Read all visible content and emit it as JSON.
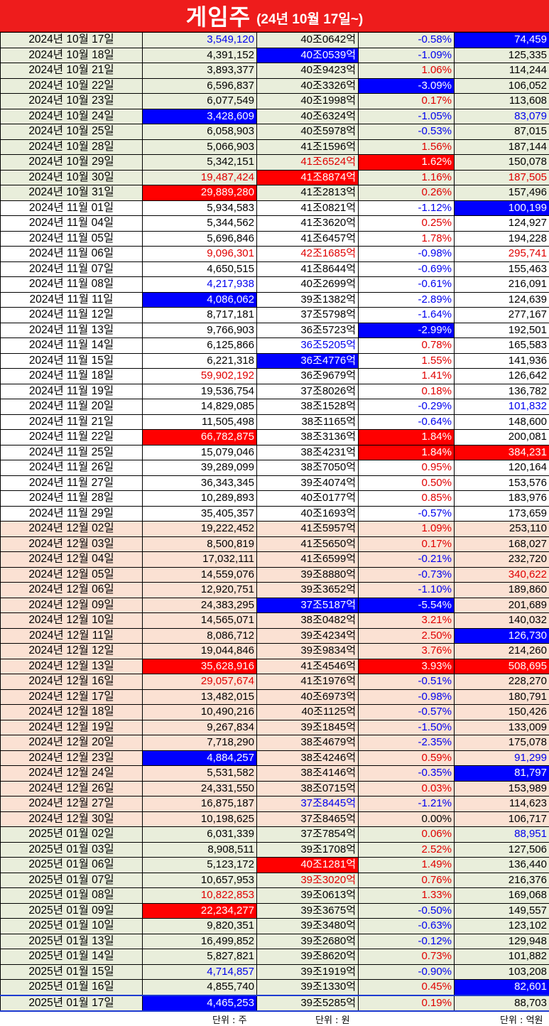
{
  "header": {
    "title": "게임주",
    "subtitle": "(24년 10월 17일~)"
  },
  "footer": {
    "unit_volume": "단위 : 주",
    "unit_cap": "단위 : 원",
    "unit_value": "단위 : 억원"
  },
  "rows": [
    {
      "bg": "g",
      "date": "2024년 10월 17일",
      "volume": "3,549,120",
      "volume_style": "cB",
      "cap": "40조0642억",
      "cap_style": "",
      "change": "-0.58%",
      "change_style": "cB",
      "value": "74,459",
      "value_style": "bgB"
    },
    {
      "bg": "g",
      "date": "2024년 10월 18일",
      "volume": "4,391,152",
      "volume_style": "",
      "cap": "40조0539억",
      "cap_style": "bgB",
      "change": "-1.09%",
      "change_style": "cB",
      "value": "125,335",
      "value_style": ""
    },
    {
      "bg": "g",
      "date": "2024년 10월 21일",
      "volume": "3,893,377",
      "volume_style": "",
      "cap": "40조9423억",
      "cap_style": "",
      "change": "1.06%",
      "change_style": "cR",
      "value": "114,244",
      "value_style": ""
    },
    {
      "bg": "g",
      "date": "2024년 10월 22일",
      "volume": "6,596,837",
      "volume_style": "",
      "cap": "40조3326억",
      "cap_style": "",
      "change": "-3.09%",
      "change_style": "bgB",
      "value": "106,052",
      "value_style": ""
    },
    {
      "bg": "g",
      "date": "2024년 10월 23일",
      "volume": "6,077,549",
      "volume_style": "",
      "cap": "40조1998억",
      "cap_style": "",
      "change": "0.17%",
      "change_style": "cR",
      "value": "113,608",
      "value_style": ""
    },
    {
      "bg": "g",
      "date": "2024년 10월 24일",
      "volume": "3,428,609",
      "volume_style": "bgB",
      "cap": "40조6324억",
      "cap_style": "",
      "change": "-1.05%",
      "change_style": "cB",
      "value": "83,079",
      "value_style": "cB"
    },
    {
      "bg": "g",
      "date": "2024년 10월 25일",
      "volume": "6,058,903",
      "volume_style": "",
      "cap": "40조5978억",
      "cap_style": "",
      "change": "-0.53%",
      "change_style": "cB",
      "value": "87,015",
      "value_style": ""
    },
    {
      "bg": "g",
      "date": "2024년 10월 28일",
      "volume": "5,066,903",
      "volume_style": "",
      "cap": "41조1596억",
      "cap_style": "",
      "change": "1.56%",
      "change_style": "cR",
      "value": "187,144",
      "value_style": ""
    },
    {
      "bg": "g",
      "date": "2024년 10월 29일",
      "volume": "5,342,151",
      "volume_style": "",
      "cap": "41조6524억",
      "cap_style": "cR",
      "change": "1.62%",
      "change_style": "bgR",
      "value": "150,078",
      "value_style": ""
    },
    {
      "bg": "g",
      "date": "2024년 10월 30일",
      "volume": "19,487,424",
      "volume_style": "cR",
      "cap": "41조8874억",
      "cap_style": "bgR",
      "change": "1.16%",
      "change_style": "cR",
      "value": "187,505",
      "value_style": "cR"
    },
    {
      "bg": "g",
      "date": "2024년 10월 31일",
      "volume": "29,889,280",
      "volume_style": "bgR",
      "cap": "41조2813억",
      "cap_style": "",
      "change": "0.26%",
      "change_style": "cR",
      "value": "157,496",
      "value_style": ""
    },
    {
      "bg": "w",
      "date": "2024년 11월 01일",
      "volume": "5,934,583",
      "volume_style": "",
      "cap": "41조0821억",
      "cap_style": "",
      "change": "-1.12%",
      "change_style": "cB",
      "value": "100,199",
      "value_style": "bgB"
    },
    {
      "bg": "w",
      "date": "2024년 11월 04일",
      "volume": "5,344,562",
      "volume_style": "",
      "cap": "41조3620억",
      "cap_style": "",
      "change": "0.25%",
      "change_style": "cR",
      "value": "124,927",
      "value_style": ""
    },
    {
      "bg": "w",
      "date": "2024년 11월 05일",
      "volume": "5,696,846",
      "volume_style": "",
      "cap": "41조6457억",
      "cap_style": "",
      "change": "1.78%",
      "change_style": "cR",
      "value": "194,228",
      "value_style": ""
    },
    {
      "bg": "w",
      "date": "2024년 11월 06일",
      "volume": "9,096,301",
      "volume_style": "cR",
      "cap": "42조1685억",
      "cap_style": "cR",
      "change": "-0.98%",
      "change_style": "cB",
      "value": "295,741",
      "value_style": "cR"
    },
    {
      "bg": "w",
      "date": "2024년 11월 07일",
      "volume": "4,650,515",
      "volume_style": "",
      "cap": "41조8644억",
      "cap_style": "",
      "change": "-0.69%",
      "change_style": "cB",
      "value": "155,463",
      "value_style": ""
    },
    {
      "bg": "w",
      "date": "2024년 11월 08일",
      "volume": "4,217,938",
      "volume_style": "cB",
      "cap": "40조2699억",
      "cap_style": "",
      "change": "-0.61%",
      "change_style": "cB",
      "value": "216,091",
      "value_style": ""
    },
    {
      "bg": "w",
      "date": "2024년 11월 11일",
      "volume": "4,086,062",
      "volume_style": "bgB",
      "cap": "39조1382억",
      "cap_style": "",
      "change": "-2.89%",
      "change_style": "cB",
      "value": "124,639",
      "value_style": ""
    },
    {
      "bg": "w",
      "date": "2024년 11월 12일",
      "volume": "8,717,181",
      "volume_style": "",
      "cap": "37조5798억",
      "cap_style": "",
      "change": "-1.64%",
      "change_style": "cB",
      "value": "277,167",
      "value_style": ""
    },
    {
      "bg": "w",
      "date": "2024년 11월 13일",
      "volume": "9,766,903",
      "volume_style": "",
      "cap": "36조5723억",
      "cap_style": "",
      "change": "-2.99%",
      "change_style": "bgB",
      "value": "192,501",
      "value_style": ""
    },
    {
      "bg": "w",
      "date": "2024년 11월 14일",
      "volume": "6,125,866",
      "volume_style": "",
      "cap": "36조5205억",
      "cap_style": "cB",
      "change": "0.78%",
      "change_style": "cR",
      "value": "165,583",
      "value_style": ""
    },
    {
      "bg": "w",
      "date": "2024년 11월 15일",
      "volume": "6,221,318",
      "volume_style": "",
      "cap": "36조4776억",
      "cap_style": "bgB",
      "change": "1.55%",
      "change_style": "cR",
      "value": "141,936",
      "value_style": ""
    },
    {
      "bg": "w",
      "date": "2024년 11월 18일",
      "volume": "59,902,192",
      "volume_style": "cR",
      "cap": "36조9679억",
      "cap_style": "",
      "change": "1.41%",
      "change_style": "cR",
      "value": "126,642",
      "value_style": ""
    },
    {
      "bg": "w",
      "date": "2024년 11월 19일",
      "volume": "19,536,754",
      "volume_style": "",
      "cap": "37조8026억",
      "cap_style": "",
      "change": "0.18%",
      "change_style": "cR",
      "value": "136,782",
      "value_style": ""
    },
    {
      "bg": "w",
      "date": "2024년 11월 20일",
      "volume": "14,829,085",
      "volume_style": "",
      "cap": "38조1528억",
      "cap_style": "",
      "change": "-0.29%",
      "change_style": "cB",
      "value": "101,832",
      "value_style": "cB"
    },
    {
      "bg": "w",
      "date": "2024년 11월 21일",
      "volume": "11,505,498",
      "volume_style": "",
      "cap": "38조1165억",
      "cap_style": "",
      "change": "-0.64%",
      "change_style": "cB",
      "value": "148,600",
      "value_style": ""
    },
    {
      "bg": "w",
      "date": "2024년 11월 22일",
      "volume": "66,782,875",
      "volume_style": "bgR",
      "cap": "38조3136억",
      "cap_style": "",
      "change": "1.84%",
      "change_style": "bgR",
      "value": "200,081",
      "value_style": ""
    },
    {
      "bg": "w",
      "date": "2024년 11월 25일",
      "volume": "15,079,046",
      "volume_style": "",
      "cap": "38조4231억",
      "cap_style": "",
      "change": "1.84%",
      "change_style": "bgR",
      "value": "384,231",
      "value_style": "bgR"
    },
    {
      "bg": "w",
      "date": "2024년 11월 26일",
      "volume": "39,289,099",
      "volume_style": "",
      "cap": "38조7050억",
      "cap_style": "",
      "change": "0.95%",
      "change_style": "cR",
      "value": "120,164",
      "value_style": ""
    },
    {
      "bg": "w",
      "date": "2024년 11월 27일",
      "volume": "36,343,345",
      "volume_style": "",
      "cap": "39조4074억",
      "cap_style": "",
      "change": "0.50%",
      "change_style": "cR",
      "value": "153,576",
      "value_style": ""
    },
    {
      "bg": "w",
      "date": "2024년 11월 28일",
      "volume": "10,289,893",
      "volume_style": "",
      "cap": "40조0177억",
      "cap_style": "",
      "change": "0.85%",
      "change_style": "cR",
      "value": "183,976",
      "value_style": ""
    },
    {
      "bg": "w",
      "date": "2024년 11월 29일",
      "volume": "35,405,357",
      "volume_style": "",
      "cap": "40조1693억",
      "cap_style": "",
      "change": "-0.57%",
      "change_style": "cB",
      "value": "173,659",
      "value_style": ""
    },
    {
      "bg": "p",
      "date": "2024년 12월 02일",
      "volume": "19,222,452",
      "volume_style": "",
      "cap": "41조5957억",
      "cap_style": "",
      "change": "1.09%",
      "change_style": "cR",
      "value": "253,110",
      "value_style": ""
    },
    {
      "bg": "p",
      "date": "2024년 12월 03일",
      "volume": "8,500,819",
      "volume_style": "",
      "cap": "41조5650억",
      "cap_style": "",
      "change": "0.17%",
      "change_style": "cR",
      "value": "168,027",
      "value_style": ""
    },
    {
      "bg": "p",
      "date": "2024년 12월 04일",
      "volume": "17,032,111",
      "volume_style": "",
      "cap": "41조6599억",
      "cap_style": "",
      "change": "-0.21%",
      "change_style": "cB",
      "value": "232,720",
      "value_style": ""
    },
    {
      "bg": "p",
      "date": "2024년 12월 05일",
      "volume": "14,559,076",
      "volume_style": "",
      "cap": "39조8880억",
      "cap_style": "",
      "change": "-0.73%",
      "change_style": "cB",
      "value": "340,622",
      "value_style": "cR"
    },
    {
      "bg": "p",
      "date": "2024년 12월 06일",
      "volume": "12,920,751",
      "volume_style": "",
      "cap": "39조3652억",
      "cap_style": "",
      "change": "-1.10%",
      "change_style": "cB",
      "value": "189,860",
      "value_style": ""
    },
    {
      "bg": "p",
      "date": "2024년 12월 09일",
      "volume": "24,383,295",
      "volume_style": "",
      "cap": "37조5187억",
      "cap_style": "bgB",
      "change": "-5.54%",
      "change_style": "bgB",
      "value": "201,689",
      "value_style": ""
    },
    {
      "bg": "p",
      "date": "2024년 12월 10일",
      "volume": "14,565,071",
      "volume_style": "",
      "cap": "38조0482억",
      "cap_style": "",
      "change": "3.21%",
      "change_style": "cR",
      "value": "140,032",
      "value_style": ""
    },
    {
      "bg": "p",
      "date": "2024년 12월 11일",
      "volume": "8,086,712",
      "volume_style": "",
      "cap": "39조4234억",
      "cap_style": "",
      "change": "2.50%",
      "change_style": "cR",
      "value": "126,730",
      "value_style": "bgB"
    },
    {
      "bg": "p",
      "date": "2024년 12월 12일",
      "volume": "19,044,846",
      "volume_style": "",
      "cap": "39조9834억",
      "cap_style": "",
      "change": "3.76%",
      "change_style": "cR",
      "value": "214,260",
      "value_style": ""
    },
    {
      "bg": "p",
      "date": "2024년 12월 13일",
      "volume": "35,628,916",
      "volume_style": "bgR",
      "cap": "41조4546억",
      "cap_style": "",
      "change": "3.93%",
      "change_style": "bgR",
      "value": "508,695",
      "value_style": "bgR"
    },
    {
      "bg": "p",
      "date": "2024년 12월 16일",
      "volume": "29,057,674",
      "volume_style": "cR",
      "cap": "41조1976억",
      "cap_style": "",
      "change": "-0.51%",
      "change_style": "cB",
      "value": "228,270",
      "value_style": ""
    },
    {
      "bg": "p",
      "date": "2024년 12월 17일",
      "volume": "13,482,015",
      "volume_style": "",
      "cap": "40조6973억",
      "cap_style": "",
      "change": "-0.98%",
      "change_style": "cB",
      "value": "180,791",
      "value_style": ""
    },
    {
      "bg": "p",
      "date": "2024년 12월 18일",
      "volume": "10,490,216",
      "volume_style": "",
      "cap": "40조1125억",
      "cap_style": "",
      "change": "-0.57%",
      "change_style": "cB",
      "value": "150,426",
      "value_style": ""
    },
    {
      "bg": "p",
      "date": "2024년 12월 19일",
      "volume": "9,267,834",
      "volume_style": "",
      "cap": "39조1845억",
      "cap_style": "",
      "change": "-1.50%",
      "change_style": "cB",
      "value": "133,009",
      "value_style": ""
    },
    {
      "bg": "p",
      "date": "2024년 12월 20일",
      "volume": "7,718,290",
      "volume_style": "",
      "cap": "38조4679억",
      "cap_style": "",
      "change": "-2.35%",
      "change_style": "cB",
      "value": "175,078",
      "value_style": ""
    },
    {
      "bg": "p",
      "date": "2024년 12월 23일",
      "volume": "4,884,257",
      "volume_style": "bgB",
      "cap": "38조4246억",
      "cap_style": "",
      "change": "0.59%",
      "change_style": "cR",
      "value": "91,299",
      "value_style": "cB"
    },
    {
      "bg": "p",
      "date": "2024년 12월 24일",
      "volume": "5,531,582",
      "volume_style": "",
      "cap": "38조4146억",
      "cap_style": "",
      "change": "-0.35%",
      "change_style": "cB",
      "value": "81,797",
      "value_style": "bgB"
    },
    {
      "bg": "p",
      "date": "2024년 12월 26일",
      "volume": "24,331,550",
      "volume_style": "",
      "cap": "38조0715억",
      "cap_style": "",
      "change": "0.03%",
      "change_style": "cR",
      "value": "153,989",
      "value_style": ""
    },
    {
      "bg": "p",
      "date": "2024년 12월 27일",
      "volume": "16,875,187",
      "volume_style": "",
      "cap": "37조8445억",
      "cap_style": "cB",
      "change": "-1.21%",
      "change_style": "cB",
      "value": "114,623",
      "value_style": ""
    },
    {
      "bg": "p",
      "date": "2024년 12월 30일",
      "volume": "10,198,625",
      "volume_style": "",
      "cap": "37조8465억",
      "cap_style": "",
      "change": "0.00%",
      "change_style": "",
      "value": "106,717",
      "value_style": ""
    },
    {
      "bg": "g",
      "date": "2025년 01월 02일",
      "volume": "6,031,339",
      "volume_style": "",
      "cap": "37조7854억",
      "cap_style": "",
      "change": "0.06%",
      "change_style": "cR",
      "value": "88,951",
      "value_style": "cB"
    },
    {
      "bg": "g",
      "date": "2025년 01월 03일",
      "volume": "8,908,511",
      "volume_style": "",
      "cap": "39조1708억",
      "cap_style": "",
      "change": "2.52%",
      "change_style": "cR",
      "value": "127,506",
      "value_style": ""
    },
    {
      "bg": "g",
      "date": "2025년 01월 06일",
      "volume": "5,123,172",
      "volume_style": "",
      "cap": "40조1281억",
      "cap_style": "bgR",
      "change": "1.49%",
      "change_style": "cR",
      "value": "136,440",
      "value_style": ""
    },
    {
      "bg": "g",
      "date": "2025년 01월 07일",
      "volume": "10,657,953",
      "volume_style": "",
      "cap": "39조3020억",
      "cap_style": "cR",
      "change": "0.76%",
      "change_style": "cR",
      "value": "216,376",
      "value_style": ""
    },
    {
      "bg": "g",
      "date": "2025년 01월 08일",
      "volume": "10,822,853",
      "volume_style": "cR",
      "cap": "39조0613억",
      "cap_style": "",
      "change": "1.33%",
      "change_style": "cR",
      "value": "169,068",
      "value_style": ""
    },
    {
      "bg": "g",
      "date": "2025년 01월 09일",
      "volume": "22,234,277",
      "volume_style": "bgR",
      "cap": "39조3675억",
      "cap_style": "",
      "change": "-0.50%",
      "change_style": "cB",
      "value": "149,557",
      "value_style": ""
    },
    {
      "bg": "g",
      "date": "2025년 01월 10일",
      "volume": "9,820,351",
      "volume_style": "",
      "cap": "39조3480억",
      "cap_style": "",
      "change": "-0.63%",
      "change_style": "cB",
      "value": "123,102",
      "value_style": ""
    },
    {
      "bg": "g",
      "date": "2025년 01월 13일",
      "volume": "16,499,852",
      "volume_style": "",
      "cap": "39조2680억",
      "cap_style": "",
      "change": "-0.12%",
      "change_style": "cB",
      "value": "129,948",
      "value_style": ""
    },
    {
      "bg": "g",
      "date": "2025년 01월 14일",
      "volume": "5,827,821",
      "volume_style": "",
      "cap": "39조8620억",
      "cap_style": "",
      "change": "0.73%",
      "change_style": "cR",
      "value": "101,882",
      "value_style": ""
    },
    {
      "bg": "g",
      "date": "2025년 01월 15일",
      "volume": "4,714,857",
      "volume_style": "cB",
      "cap": "39조1919억",
      "cap_style": "",
      "change": "-0.90%",
      "change_style": "cB",
      "value": "103,208",
      "value_style": ""
    },
    {
      "bg": "g",
      "date": "2025년 01월 16일",
      "volume": "4,855,740",
      "volume_style": "",
      "cap": "39조1330억",
      "cap_style": "",
      "change": "0.45%",
      "change_style": "cR",
      "value": "82,601",
      "value_style": "bgB"
    },
    {
      "bg": "g",
      "date": "2025년 01월 17일",
      "volume": "4,465,253",
      "volume_style": "bgB",
      "cap": "39조5285억",
      "cap_style": "",
      "change": "0.19%",
      "change_style": "cR",
      "value": "88,703",
      "value_style": ""
    }
  ]
}
